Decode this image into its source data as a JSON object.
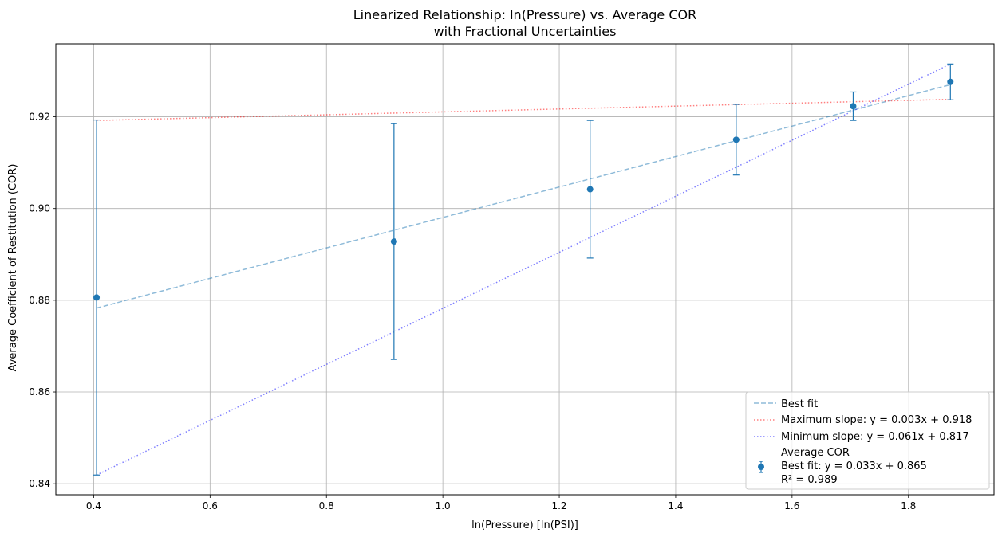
{
  "chart_data": {
    "type": "scatter",
    "title_lines": [
      "Linearized Relationship: ln(Pressure) vs. Average COR",
      "with Fractional Uncertainties"
    ],
    "xlabel": "ln(Pressure) [ln(PSI)]",
    "ylabel": "Average Coefficient of Restitution (COR)",
    "xlim": [
      0.335,
      1.947
    ],
    "ylim": [
      0.8376,
      0.9359
    ],
    "x_ticks": [
      0.4,
      0.6,
      0.8,
      1.0,
      1.2,
      1.4,
      1.6,
      1.8
    ],
    "x_tick_labels": [
      "0.4",
      "0.6",
      "0.8",
      "1.0",
      "1.2",
      "1.4",
      "1.6",
      "1.8"
    ],
    "y_ticks": [
      0.84,
      0.86,
      0.88,
      0.9,
      0.92
    ],
    "y_tick_labels": [
      "0.84",
      "0.86",
      "0.88",
      "0.90",
      "0.92"
    ],
    "grid": true,
    "legend_position": "lower-right",
    "points": {
      "name": "Average COR",
      "color": "#1f77b4",
      "x": [
        0.405,
        0.916,
        1.253,
        1.504,
        1.705,
        1.872
      ],
      "y": [
        0.8806,
        0.8928,
        0.9042,
        0.915,
        0.9223,
        0.9276
      ],
      "yerr": [
        0.0387,
        0.0257,
        0.015,
        0.0077,
        0.0031,
        0.0039
      ]
    },
    "lines": [
      {
        "name": "Best fit",
        "color": "#1f77b4",
        "opacity": 0.5,
        "dash": "dashed",
        "x": [
          0.405,
          1.872
        ],
        "y": [
          0.8783,
          0.927
        ]
      },
      {
        "name": "Maximum slope: y = 0.003x + 0.918",
        "color": "#ff0000",
        "opacity": 0.5,
        "dash": "dotted",
        "x": [
          0.405,
          1.872
        ],
        "y": [
          0.9192,
          0.9238
        ]
      },
      {
        "name": "Minimum slope: y = 0.061x + 0.817",
        "color": "#0000ff",
        "opacity": 0.5,
        "dash": "dotted",
        "x": [
          0.405,
          1.872
        ],
        "y": [
          0.8419,
          0.9315
        ]
      }
    ],
    "legend": {
      "entries": [
        "Best fit",
        "Maximum slope: y = 0.003x + 0.918",
        "Minimum slope: y = 0.061x + 0.817"
      ],
      "points_entry_lines": [
        "Average COR",
        "Best fit: y = 0.033x + 0.865",
        "R² = 0.989"
      ]
    }
  }
}
